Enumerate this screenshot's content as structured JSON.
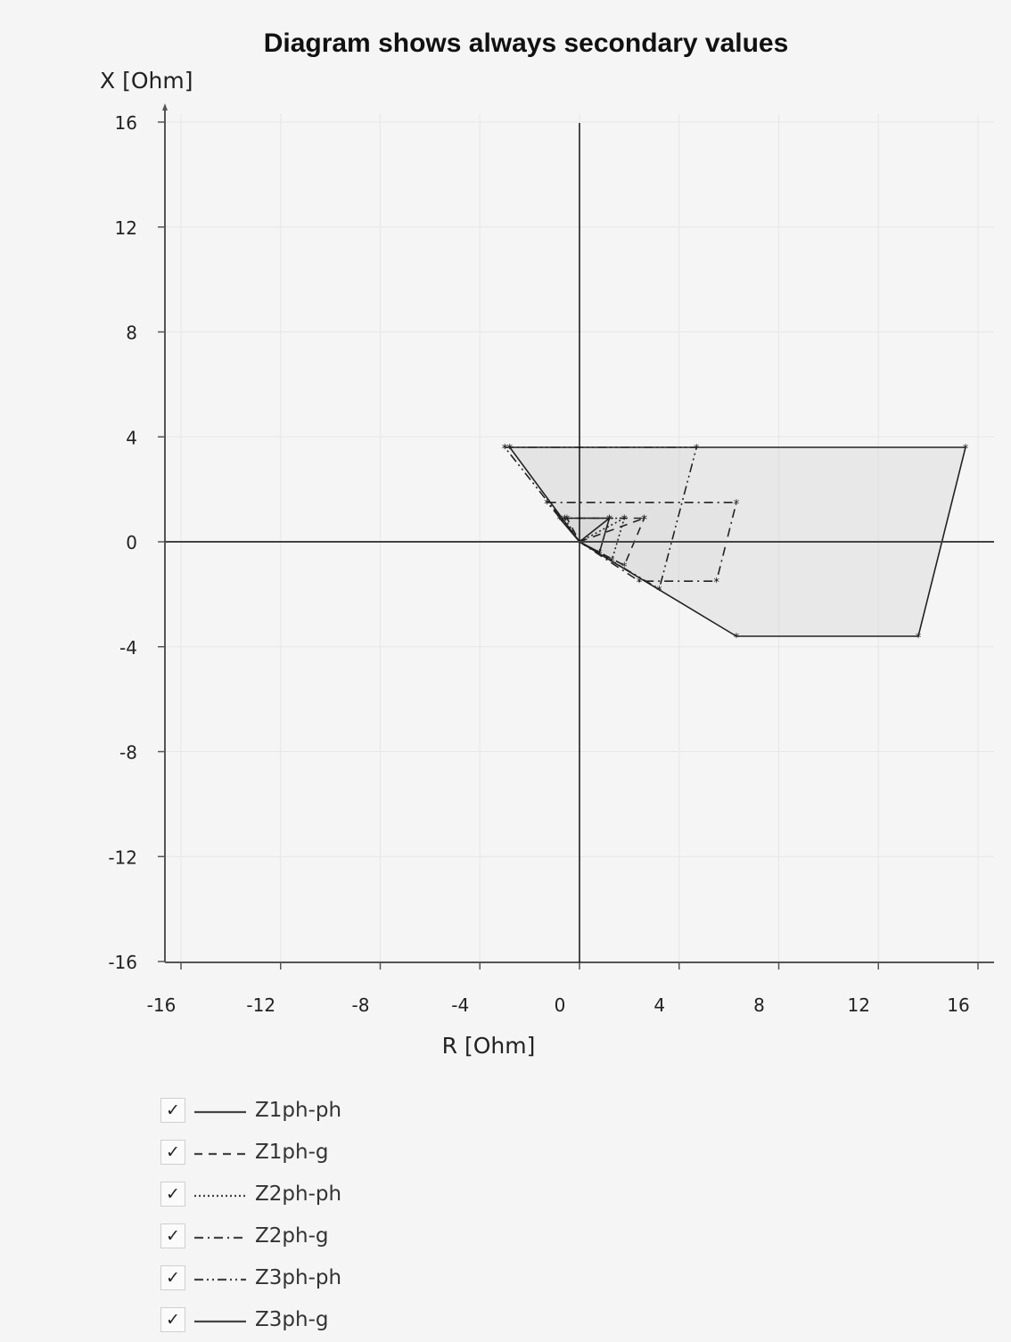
{
  "chart_data": {
    "type": "impedance-zone-diagram",
    "title": "Diagram shows always secondary values",
    "xlabel": "R [Ohm]",
    "ylabel": "X [Ohm]",
    "xlim": [
      -16,
      16
    ],
    "ylim": [
      -16,
      16
    ],
    "xticks": [
      -16,
      -12,
      -8,
      -4,
      0,
      4,
      8,
      12,
      16
    ],
    "yticks": [
      16,
      12,
      8,
      4,
      0,
      -4,
      -8,
      -12,
      -16
    ],
    "grid": true,
    "legend_position": "bottom-left",
    "series": [
      {
        "name": "Z1ph-ph",
        "line_style": "solid",
        "points": [
          [
            0,
            0
          ],
          [
            1.2,
            0.9
          ],
          [
            -0.8,
            0.9
          ],
          [
            0,
            0
          ],
          [
            0.8,
            -0.4
          ],
          [
            1.2,
            0.9
          ]
        ]
      },
      {
        "name": "Z1ph-g",
        "line_style": "dashed",
        "points": [
          [
            0,
            0
          ],
          [
            2.6,
            0.9
          ],
          [
            -0.5,
            0.9
          ],
          [
            0,
            0
          ],
          [
            1.8,
            -0.9
          ],
          [
            2.6,
            0.9
          ]
        ]
      },
      {
        "name": "Z2ph-ph",
        "line_style": "dotted",
        "points": [
          [
            0,
            0
          ],
          [
            1.8,
            0.9
          ],
          [
            -0.6,
            0.9
          ],
          [
            0,
            0
          ],
          [
            1.3,
            -0.7
          ],
          [
            1.8,
            0.9
          ]
        ]
      },
      {
        "name": "Z2ph-g",
        "line_style": "dash-dot",
        "points": [
          [
            -1.3,
            1.5
          ],
          [
            6.3,
            1.5
          ],
          [
            5.5,
            -1.5
          ],
          [
            2.4,
            -1.5
          ],
          [
            0,
            0
          ],
          [
            -1.3,
            1.5
          ]
        ]
      },
      {
        "name": "Z3ph-ph",
        "line_style": "dash-dot-dot",
        "points": [
          [
            -3.0,
            3.6
          ],
          [
            4.7,
            3.6
          ],
          [
            3.2,
            -1.8
          ],
          [
            0,
            0
          ],
          [
            -3.0,
            3.6
          ]
        ]
      },
      {
        "name": "Z3ph-g",
        "line_style": "solid",
        "points": [
          [
            -2.8,
            3.6
          ],
          [
            15.5,
            3.6
          ],
          [
            13.6,
            -3.6
          ],
          [
            6.3,
            -3.6
          ],
          [
            0,
            0
          ],
          [
            -2.8,
            3.6
          ]
        ]
      }
    ],
    "colors": {
      "line": "#222222",
      "axis": "#555555",
      "grid": "#e6e6e6",
      "fill": "#d0d0d0"
    }
  },
  "legend": {
    "check_mark": "✓",
    "items": [
      {
        "label": "Z1ph-ph",
        "checked": true
      },
      {
        "label": "Z1ph-g",
        "checked": true
      },
      {
        "label": "Z2ph-ph",
        "checked": true
      },
      {
        "label": "Z2ph-g",
        "checked": true
      },
      {
        "label": "Z3ph-ph",
        "checked": true
      },
      {
        "label": "Z3ph-g",
        "checked": true
      }
    ]
  }
}
